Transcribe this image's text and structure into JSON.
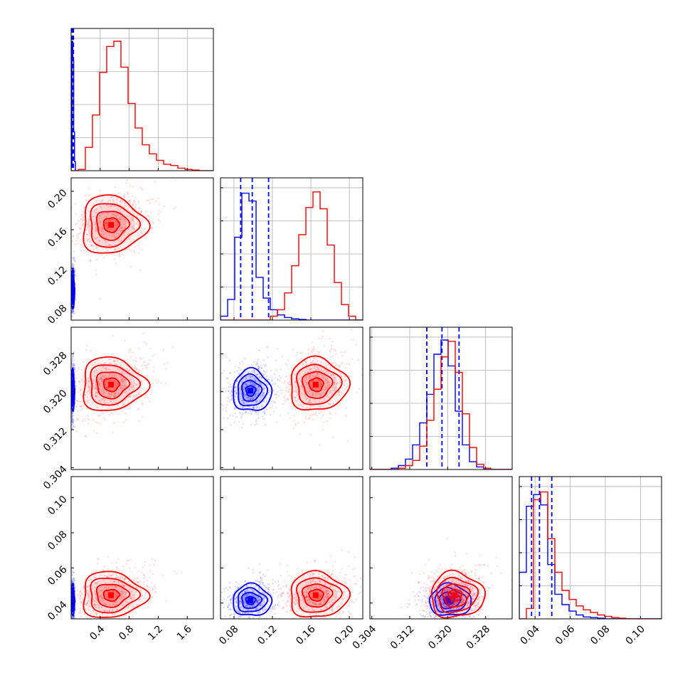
{
  "chart_data": {
    "type": "corner",
    "title": "",
    "grid": true,
    "colors": {
      "series_a": "#0000ff",
      "series_b": "#ff0000"
    },
    "parameters": [
      {
        "id": "p0",
        "range": [
          0.0,
          1.96
        ],
        "ticks": [
          0.4,
          0.8,
          1.2,
          1.6
        ],
        "tick_labels": [
          "0.4",
          "0.8",
          "1.2",
          "1.6"
        ]
      },
      {
        "id": "p1",
        "range": [
          0.066,
          0.214
        ],
        "ticks": [
          0.08,
          0.12,
          0.16,
          0.2
        ],
        "tick_labels": [
          "0.08",
          "0.12",
          "0.16",
          "0.20"
        ]
      },
      {
        "id": "p2",
        "range": [
          0.3036,
          0.3336
        ],
        "ticks": [
          0.304,
          0.312,
          0.32,
          0.328
        ],
        "tick_labels": [
          "0.304",
          "0.312",
          "0.320",
          "0.328"
        ]
      },
      {
        "id": "p3",
        "range": [
          0.031,
          0.112
        ],
        "ticks": [
          0.04,
          0.06,
          0.08,
          0.1
        ],
        "tick_labels": [
          "0.04",
          "0.06",
          "0.08",
          "0.10"
        ]
      }
    ],
    "y_tick_labels": {
      "row1": [
        "0.08",
        "0.12",
        "0.16",
        "0.20"
      ],
      "row2": [
        "0.304",
        "0.312",
        "0.320",
        "0.328"
      ],
      "row3": [
        "0.04",
        "0.06",
        "0.08",
        "0.10"
      ]
    },
    "series": [
      {
        "color": "#0000ff",
        "means": [
          0.02,
          0.097,
          0.3202,
          0.0415
        ],
        "sds": [
          0.012,
          0.01,
          0.0022,
          0.0045
        ],
        "quantiles": [
          [
            0.012,
            0.022,
            0.032
          ],
          [
            0.087,
            0.099,
            0.116
          ],
          [
            0.3156,
            0.3188,
            0.3224
          ],
          [
            0.038,
            0.0425,
            0.0495
          ]
        ],
        "hist": [
          {
            "edges_start": 0.0,
            "edges_stop": 0.07,
            "counts": [
              0.05,
              1.0,
              0.85,
              0.3,
              0.07,
              0.0
            ]
          },
          {
            "edges_start": 0.066,
            "edges_stop": 0.214,
            "counts": [
              0.03,
              0.16,
              0.64,
              0.98,
              0.92,
              0.33,
              0.17,
              0.08,
              0.04,
              0.02,
              0.01,
              0.005,
              0.0,
              0.0,
              0.0,
              0.0,
              0.0,
              0.0,
              0.0,
              0.0
            ]
          },
          {
            "edges_start": 0.3036,
            "edges_stop": 0.3336,
            "counts": [
              0.0,
              0.0,
              0.0,
              0.01,
              0.03,
              0.08,
              0.19,
              0.36,
              0.58,
              0.89,
              1.0,
              0.8,
              0.45,
              0.19,
              0.06,
              0.02,
              0.0,
              0.0,
              0.0,
              0.0
            ]
          },
          {
            "edges_start": 0.031,
            "edges_stop": 0.112,
            "counts": [
              0.36,
              0.87,
              0.96,
              0.88,
              0.42,
              0.19,
              0.11,
              0.06,
              0.03,
              0.015,
              0.01,
              0.005,
              0.0,
              0.0,
              0.0,
              0.0,
              0.0,
              0.0,
              0.0,
              0.0
            ]
          }
        ]
      },
      {
        "color": "#ff0000",
        "means": [
          0.55,
          0.165,
          0.3215,
          0.0445
        ],
        "sds": [
          0.22,
          0.015,
          0.0028,
          0.0065
        ],
        "quantiles": [],
        "hist": [
          {
            "edges_start": 0.0,
            "edges_stop": 1.96,
            "counts": [
              0.0,
              0.01,
              0.18,
              0.43,
              0.76,
              0.96,
              1.0,
              0.8,
              0.52,
              0.33,
              0.2,
              0.13,
              0.08,
              0.05,
              0.04,
              0.02,
              0.01,
              0.005,
              0.0,
              0.0
            ]
          },
          {
            "edges_start": 0.066,
            "edges_stop": 0.214,
            "counts": [
              0.0,
              0.0,
              0.0,
              0.0,
              0.0,
              0.0,
              0.0,
              0.03,
              0.08,
              0.21,
              0.42,
              0.66,
              0.87,
              0.99,
              0.86,
              0.58,
              0.29,
              0.12,
              0.03,
              0.0
            ]
          },
          {
            "edges_start": 0.3036,
            "edges_stop": 0.3336,
            "counts": [
              0.0,
              0.0,
              0.0,
              0.0,
              0.01,
              0.03,
              0.07,
              0.18,
              0.38,
              0.62,
              0.87,
              0.99,
              0.75,
              0.43,
              0.17,
              0.04,
              0.01,
              0.0,
              0.0,
              0.0
            ]
          },
          {
            "edges_start": 0.031,
            "edges_stop": 0.112,
            "counts": [
              0.0,
              0.08,
              0.92,
              0.98,
              0.62,
              0.36,
              0.22,
              0.15,
              0.1,
              0.07,
              0.05,
              0.03,
              0.02,
              0.01,
              0.005,
              0.0,
              0.0,
              0.0,
              0.0,
              0.0
            ]
          }
        ]
      }
    ]
  }
}
